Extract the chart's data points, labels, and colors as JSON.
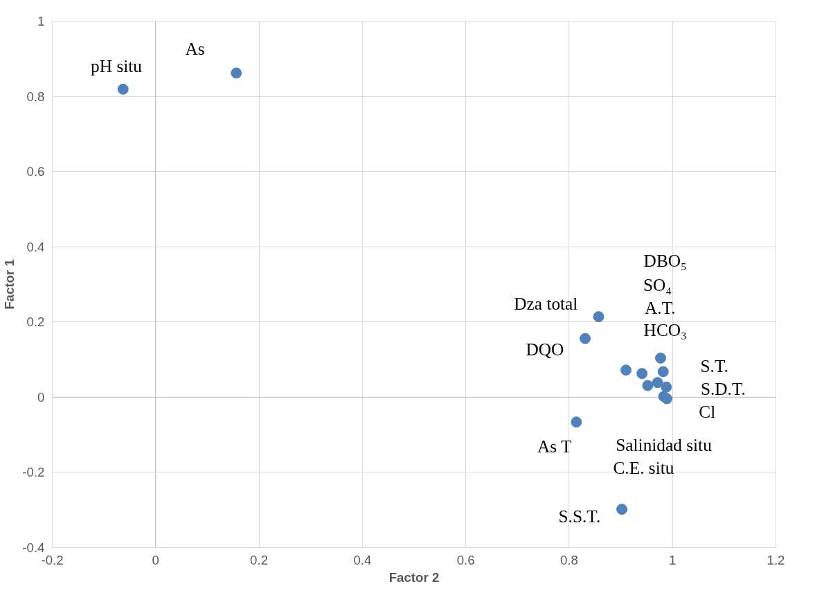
{
  "chart_data": {
    "type": "scatter",
    "xlabel": "Factor 2",
    "ylabel": "Factor 1",
    "x": [
      -0.063,
      0.156,
      0.857,
      0.831,
      0.91,
      0.941,
      0.977,
      0.982,
      0.952,
      0.971,
      0.988,
      0.983,
      0.989,
      0.814,
      0.902
    ],
    "series": [
      {
        "color": "#4f81bd",
        "values": [
          0.819,
          0.862,
          0.214,
          0.156,
          0.072,
          0.063,
          0.104,
          0.068,
          0.031,
          0.039,
          0.027,
          0.002,
          -0.004,
          -0.066,
          -0.298
        ]
      }
    ],
    "xlim": [
      -0.2,
      1.2
    ],
    "xticks": [
      -0.2,
      0,
      0.2,
      0.4,
      0.6,
      0.8,
      1,
      1.2
    ],
    "ylim": [
      -0.4,
      1
    ],
    "yticks": [
      -0.4,
      -0.2,
      0,
      0.2,
      0.4,
      0.6,
      0.8,
      1
    ],
    "grid": true,
    "marker": "circle",
    "annotations": [
      "pH situ",
      "As",
      "Dza total",
      "DQO",
      "DBO₅",
      "SO₄",
      "A.T.",
      "HCO₃",
      "S.T.",
      "S.D.T.",
      "Cl",
      "As T",
      "Salinidad situ",
      "C.E. situ",
      "S.S.T."
    ]
  }
}
